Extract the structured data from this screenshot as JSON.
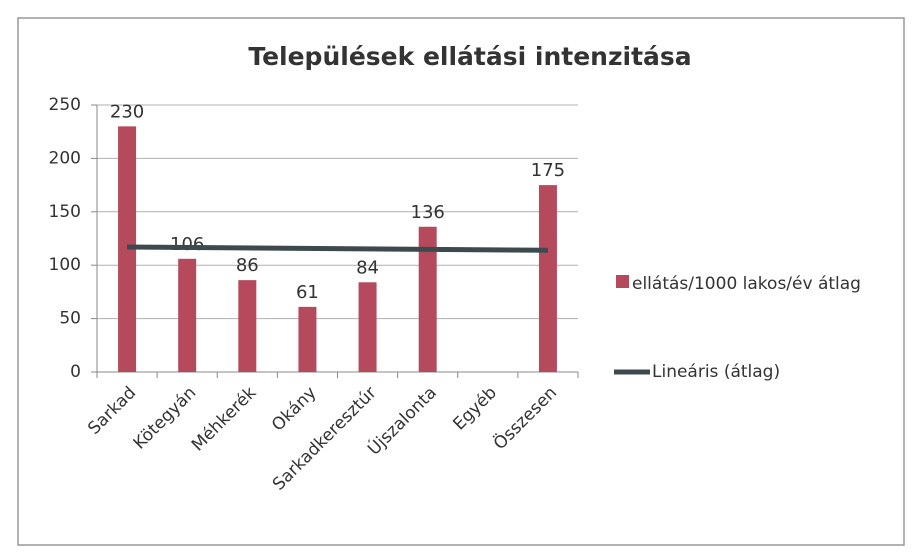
{
  "chart_data": {
    "type": "bar",
    "title": "Települések ellátási intenzitása",
    "categories": [
      "Sarkad",
      "Kötegyán",
      "Méhkerék",
      "Okány",
      "Sarkadkeresztúr",
      "Újszalonta",
      "Egyéb",
      "Összesen"
    ],
    "series": [
      {
        "name": "ellátás/1000 lakos/év átlag",
        "color": "#b54a5c",
        "values": [
          230,
          106,
          86,
          61,
          84,
          136,
          null,
          175
        ]
      }
    ],
    "trendline": {
      "name": "Lineáris (átlag)",
      "color": "#3c4a4e",
      "values": [
        117,
        114
      ]
    },
    "ylim": [
      0,
      250
    ],
    "yticks": [
      0,
      50,
      100,
      150,
      200,
      250
    ],
    "grid": true,
    "legend": "right"
  }
}
